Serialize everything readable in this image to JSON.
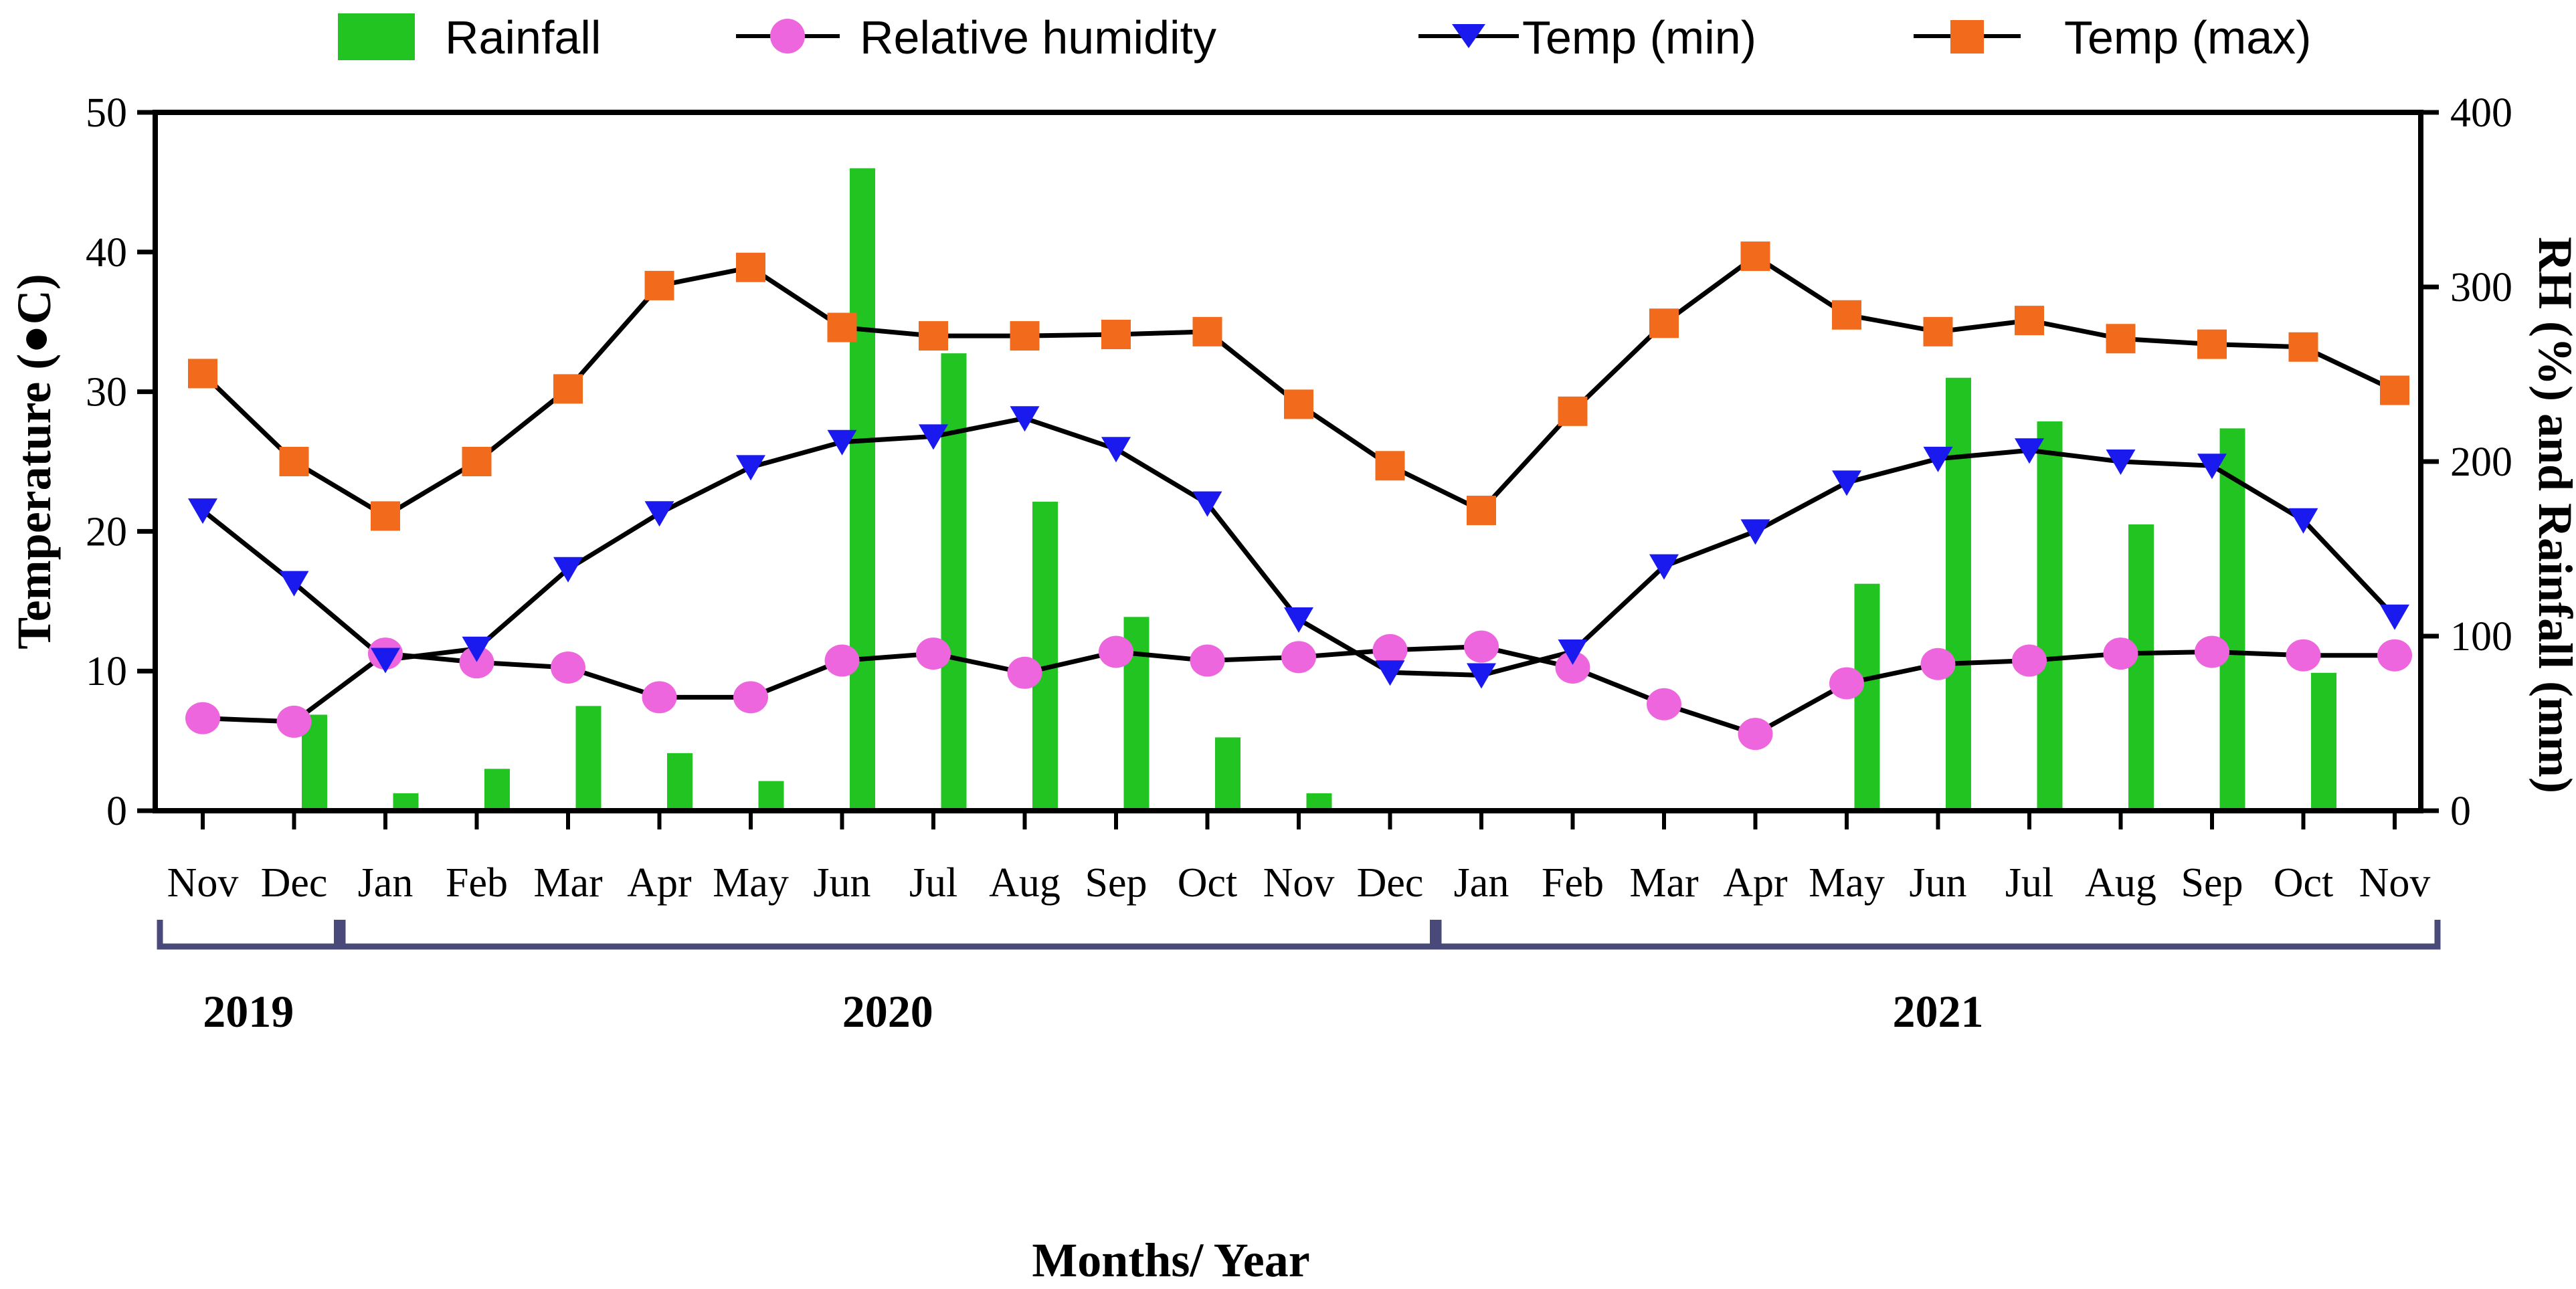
{
  "chart_data": {
    "type": "bar+line",
    "title": "",
    "xlabel": "Months/ Year",
    "ylabel_left": "Temperature (●C)",
    "ylabel_right": "RH (%) and Rainfall (mm)",
    "ylim_left": [
      0,
      50
    ],
    "ylim_right": [
      0,
      400
    ],
    "yticks_left": [
      "0",
      "10",
      "20",
      "30",
      "40",
      "50"
    ],
    "yticks_right": [
      "0",
      "100",
      "200",
      "300",
      "400"
    ],
    "categories": [
      "Nov",
      "Dec",
      "Jan",
      "Feb",
      "Mar",
      "Apr",
      "May",
      "Jun",
      "Jul",
      "Aug",
      "Sep",
      "Oct",
      "Nov",
      "Dec",
      "Jan",
      "Feb",
      "Mar",
      "Apr",
      "May",
      "Jun",
      "Jul",
      "Aug",
      "Sep",
      "Oct",
      "Nov"
    ],
    "years": [
      {
        "label": "2019",
        "start": 0,
        "end": 1
      },
      {
        "label": "2020",
        "start": 2,
        "end": 13
      },
      {
        "label": "2021",
        "start": 14,
        "end": 24
      }
    ],
    "legend_position": "top",
    "series": [
      {
        "name": "Rainfall",
        "type": "bar",
        "axis": "right",
        "color": "#22c422",
        "values": [
          0,
          55,
          10,
          24,
          60,
          33,
          17,
          368,
          262,
          177,
          111,
          42,
          10,
          0,
          0,
          0,
          0,
          0,
          130,
          248,
          223,
          164,
          219,
          79,
          0
        ]
      },
      {
        "name": "Relative humidity",
        "type": "line",
        "axis": "right",
        "marker": "circle",
        "color": "#ee66dd",
        "values": [
          53,
          51,
          90,
          85,
          82,
          65,
          65,
          86,
          90,
          79,
          91,
          86,
          88,
          92,
          94,
          82,
          61,
          44,
          73,
          84,
          86,
          90,
          91,
          89,
          89
        ]
      },
      {
        "name": "Temp (min)",
        "type": "line",
        "axis": "left",
        "marker": "triangle-down",
        "color": "#1a1aee",
        "values": [
          21.5,
          16.3,
          10.8,
          11.6,
          17.3,
          21.3,
          24.6,
          26.4,
          26.8,
          28.1,
          25.9,
          22.0,
          13.7,
          9.9,
          9.7,
          11.4,
          17.5,
          20.0,
          23.5,
          25.2,
          25.8,
          25.0,
          24.7,
          20.8,
          13.9
        ]
      },
      {
        "name": "Temp (max)",
        "type": "line",
        "axis": "left",
        "marker": "square",
        "color": "#f26a1b",
        "values": [
          31.3,
          25.0,
          21.1,
          25.0,
          30.2,
          37.6,
          38.9,
          34.6,
          34.0,
          34.0,
          34.1,
          34.3,
          29.1,
          24.7,
          21.5,
          28.6,
          34.9,
          39.7,
          35.5,
          34.3,
          35.1,
          33.8,
          33.4,
          33.2,
          30.1
        ]
      }
    ]
  }
}
